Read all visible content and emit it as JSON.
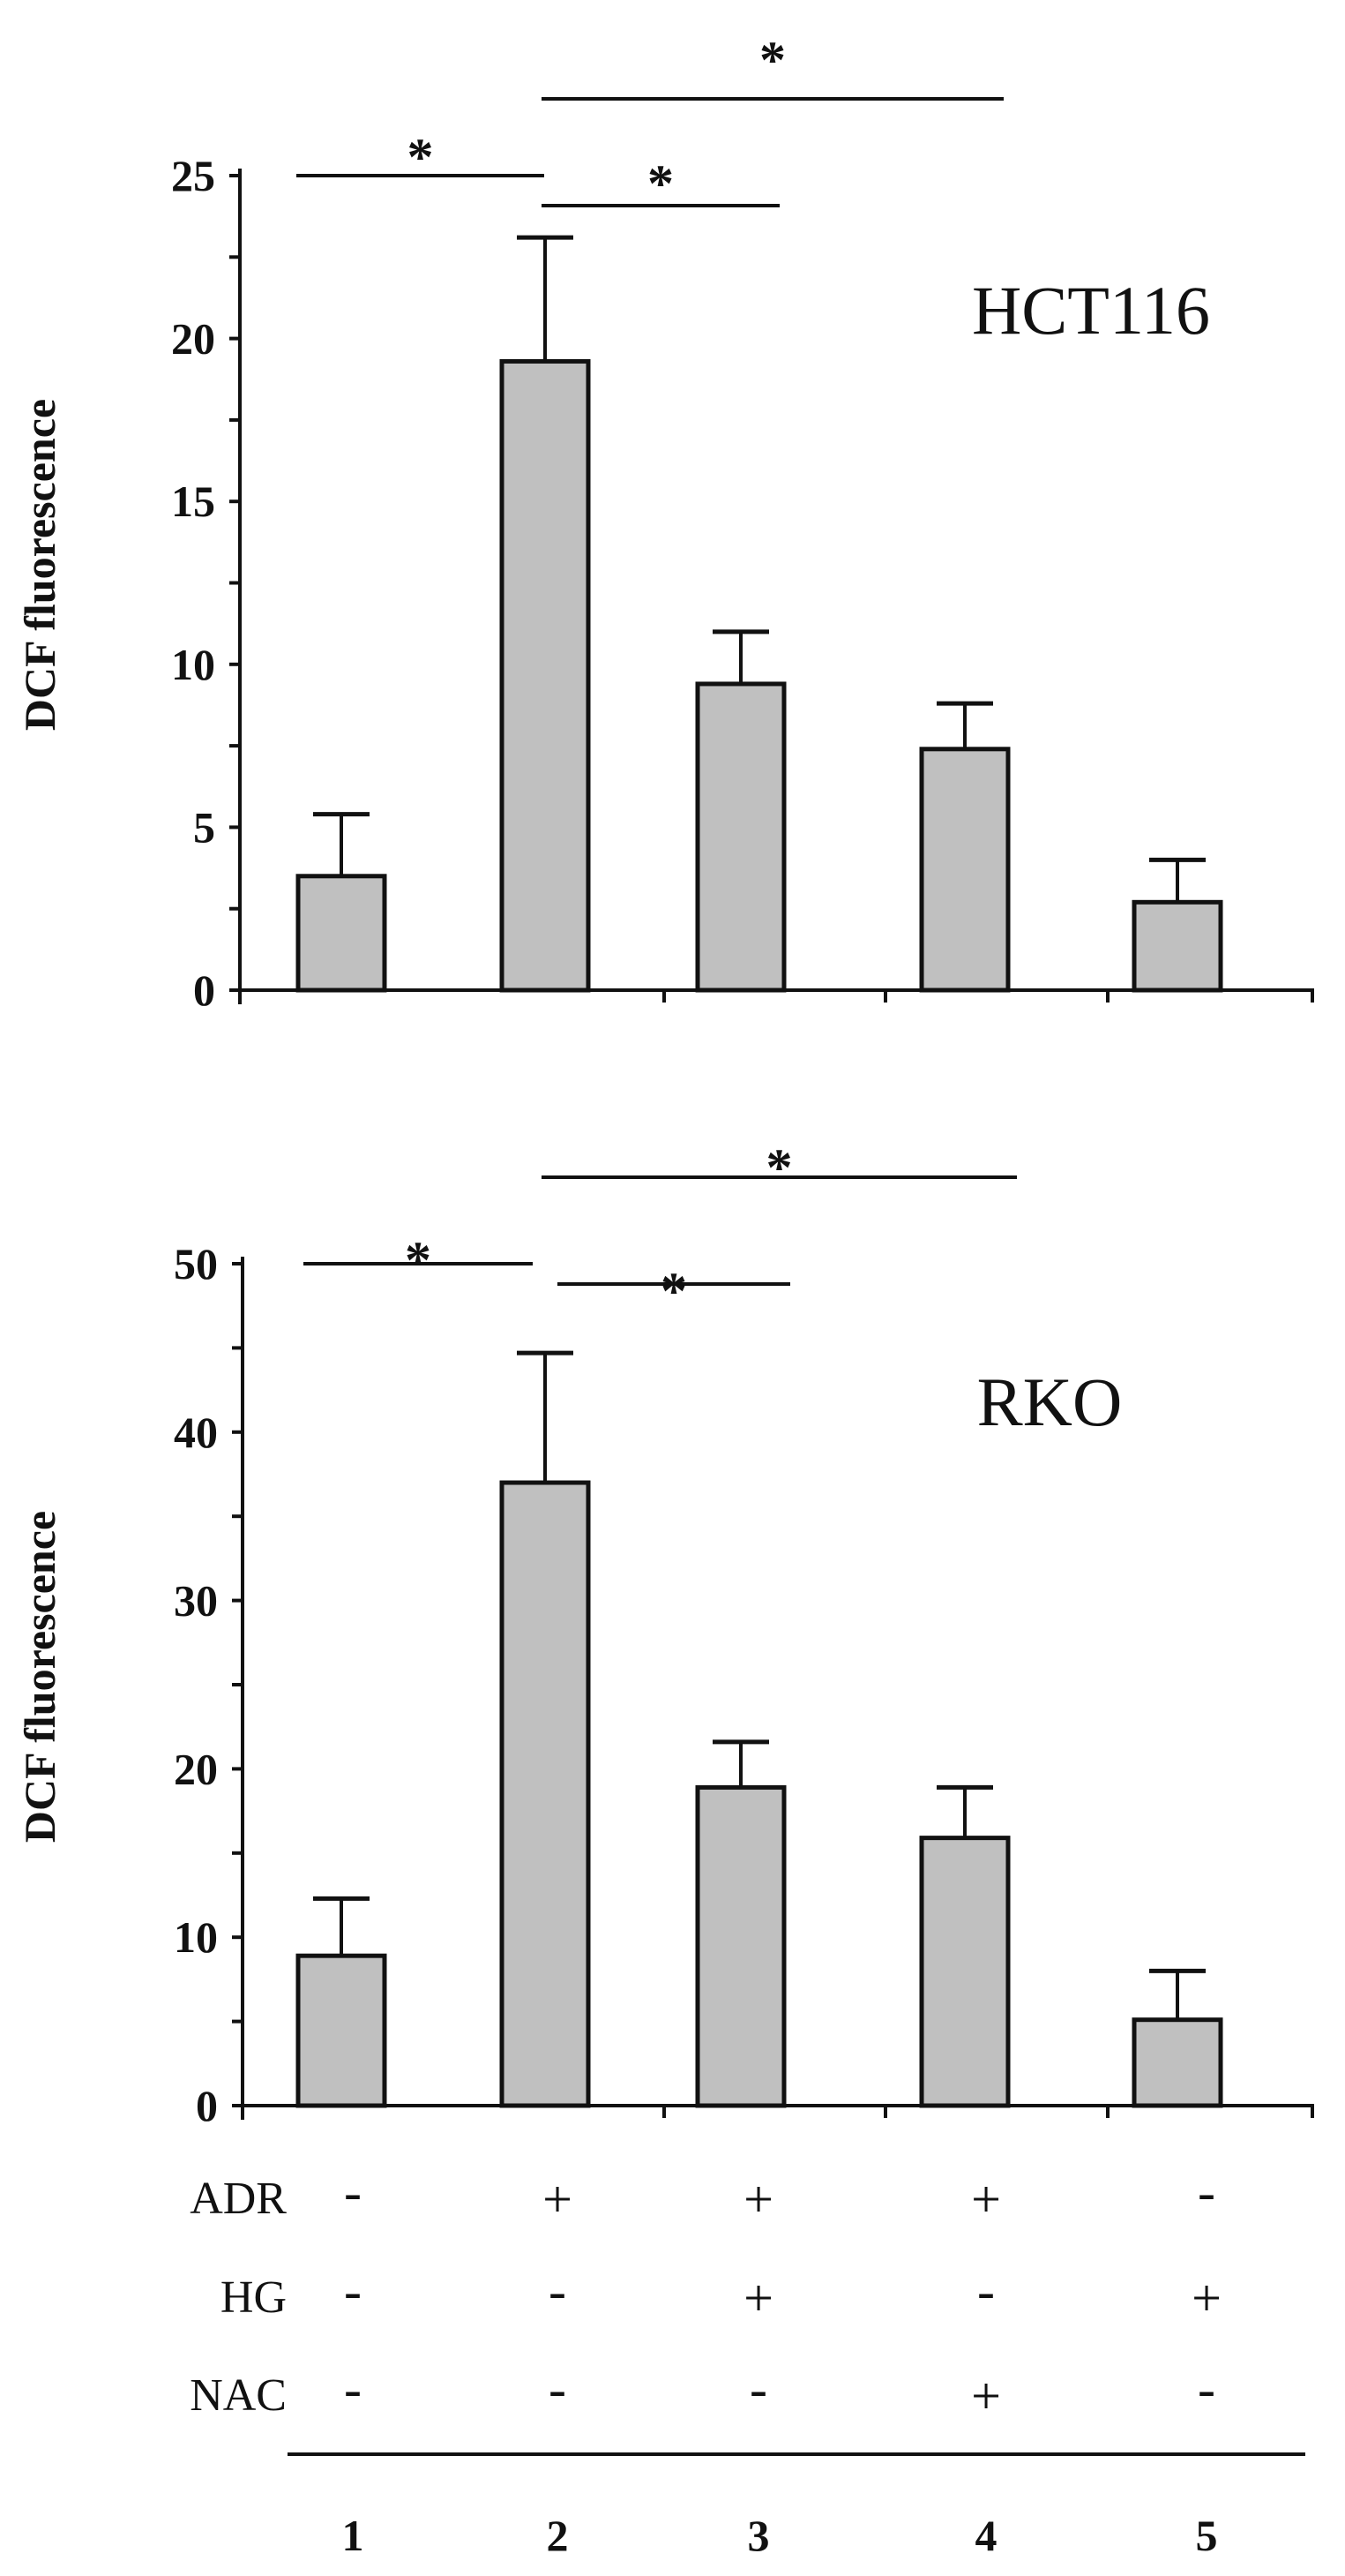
{
  "chart_data": [
    {
      "type": "bar",
      "title": "HCT116",
      "ylabel": "DCF fluorescence",
      "ylim": [
        0,
        25
      ],
      "yticks": [
        "0",
        "5",
        "10",
        "15",
        "20",
        "25"
      ],
      "categories": [
        "1",
        "2",
        "3",
        "4",
        "5"
      ],
      "values": [
        3.5,
        19.3,
        9.4,
        7.4,
        2.7
      ],
      "error_upper": [
        5.4,
        23.1,
        11.0,
        8.8,
        4.0
      ],
      "significance": [
        {
          "from": "1",
          "to": "2",
          "label": "*"
        },
        {
          "from": "2",
          "to": "3",
          "label": "*"
        },
        {
          "from": "2",
          "to": "4",
          "label": "*"
        }
      ],
      "bar_color": "#c0c0c0"
    },
    {
      "type": "bar",
      "title": "RKO",
      "ylabel": "DCF fluorescence",
      "ylim": [
        0,
        50
      ],
      "yticks": [
        "0",
        "10",
        "20",
        "30",
        "40",
        "50"
      ],
      "categories": [
        "1",
        "2",
        "3",
        "4",
        "5"
      ],
      "values": [
        8.9,
        37.0,
        18.9,
        15.9,
        5.1
      ],
      "error_upper": [
        12.3,
        44.7,
        21.6,
        18.9,
        8.0
      ],
      "significance": [
        {
          "from": "1",
          "to": "2",
          "label": "*"
        },
        {
          "from": "2",
          "to": "3",
          "label": "*"
        },
        {
          "from": "2",
          "to": "4",
          "label": "*"
        }
      ],
      "bar_color": "#c0c0c0"
    }
  ],
  "treatments": [
    {
      "label": "ADR",
      "values": [
        "-",
        "+",
        "+",
        "+",
        "-"
      ]
    },
    {
      "label": "HG",
      "values": [
        "-",
        "-",
        "+",
        "-",
        "+"
      ]
    },
    {
      "label": "NAC",
      "values": [
        "-",
        "-",
        "-",
        "+",
        "-"
      ]
    }
  ],
  "lane_numbers": [
    "1",
    "2",
    "3",
    "4",
    "5"
  ]
}
